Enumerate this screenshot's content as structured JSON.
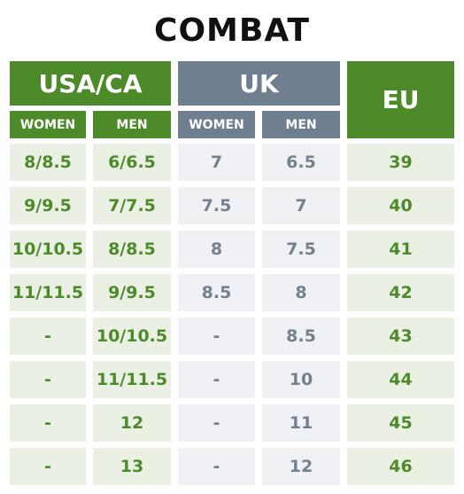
{
  "title": "COMBAT",
  "headers": {
    "usa_ca": "USA/CA",
    "uk": "UK",
    "eu": "EU",
    "women": "WOMEN",
    "men": "MEN"
  },
  "rows": [
    [
      "8/8.5",
      "6/6.5",
      "7",
      "6.5",
      "39"
    ],
    [
      "9/9.5",
      "7/7.5",
      "7.5",
      "7",
      "40"
    ],
    [
      "10/10.5",
      "8/8.5",
      "8",
      "7.5",
      "41"
    ],
    [
      "11/11.5",
      "9/9.5",
      "8.5",
      "8",
      "42"
    ],
    [
      "-",
      "10/10.5",
      "-",
      "8.5",
      "43"
    ],
    [
      "-",
      "11/11.5",
      "-",
      "10",
      "44"
    ],
    [
      "-",
      "12",
      "-",
      "11",
      "45"
    ],
    [
      "-",
      "13",
      "-",
      "12",
      "46"
    ]
  ],
  "colors": {
    "green": "#4d8a2a",
    "gray": "#6f7f8f",
    "green_cell": "#eaf1e4",
    "gray_cell": "#eff1f4"
  }
}
